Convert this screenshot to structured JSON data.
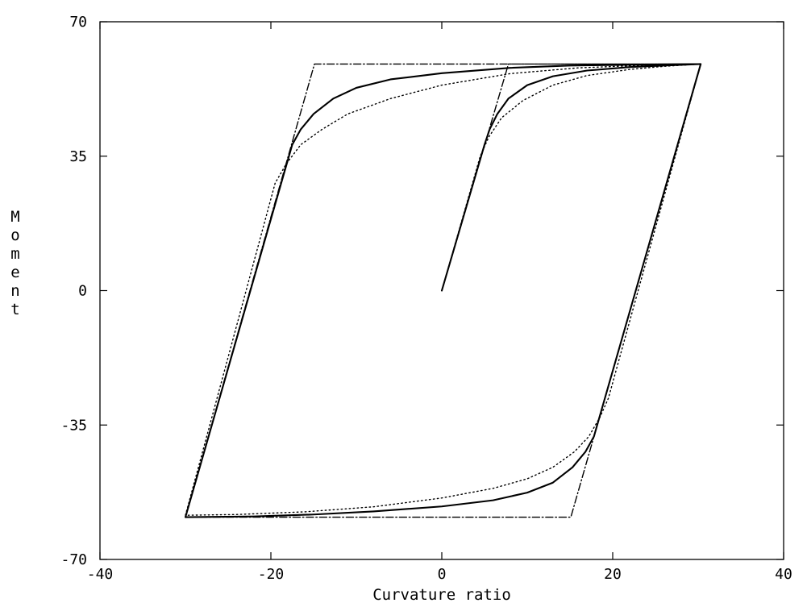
{
  "chart_data": {
    "type": "line",
    "title": "",
    "xlabel": "Curvature ratio",
    "ylabel": "Moment",
    "xlim": [
      -40,
      40
    ],
    "ylim": [
      -70,
      70
    ],
    "x_ticks": [
      -40,
      -20,
      0,
      20,
      40
    ],
    "y_ticks": [
      -70,
      -35,
      0,
      35,
      70
    ],
    "x_tick_labels": [
      "-40",
      "-20",
      "0",
      "20",
      "40"
    ],
    "y_tick_labels": [
      "-70",
      "-35",
      "0",
      "35",
      "70"
    ],
    "grid": false,
    "legend": "none",
    "series": [
      {
        "style": "dash-dot",
        "color": "#000000",
        "points": [
          [
            0,
            0
          ],
          [
            7.8,
            59
          ],
          [
            30.3,
            59
          ],
          [
            15.1,
            -59
          ],
          [
            -30,
            -59
          ],
          [
            -14.9,
            59
          ],
          [
            30.3,
            59
          ]
        ]
      },
      {
        "style": "solid",
        "color": "#000000",
        "points": [
          [
            0,
            0
          ],
          [
            5,
            38
          ],
          [
            5.6,
            42
          ],
          [
            6.5,
            46
          ],
          [
            7.8,
            50
          ],
          [
            10,
            53.5
          ],
          [
            13,
            55.8
          ],
          [
            17,
            57.3
          ],
          [
            22,
            58.2
          ],
          [
            26,
            58.6
          ],
          [
            30.3,
            59
          ],
          [
            17.8,
            -38
          ],
          [
            16.8,
            -42
          ],
          [
            15.3,
            -46
          ],
          [
            13,
            -50
          ],
          [
            10,
            -52.6
          ],
          [
            6,
            -54.6
          ],
          [
            0,
            -56.2
          ],
          [
            -8,
            -57.5
          ],
          [
            -15,
            -58.3
          ],
          [
            -22,
            -58.8
          ],
          [
            -30,
            -59
          ],
          [
            -17.5,
            38
          ],
          [
            -16.5,
            42
          ],
          [
            -15,
            46
          ],
          [
            -12.7,
            50
          ],
          [
            -10,
            52.8
          ],
          [
            -6,
            55
          ],
          [
            0,
            56.6
          ],
          [
            8,
            58
          ],
          [
            15,
            58.6
          ],
          [
            22,
            58.8
          ],
          [
            30.3,
            59
          ]
        ]
      },
      {
        "style": "dotted",
        "color": "#000000",
        "points": [
          [
            0,
            0
          ],
          [
            4.5,
            35
          ],
          [
            5.5,
            40
          ],
          [
            7,
            45
          ],
          [
            9.5,
            49.5
          ],
          [
            13,
            53.5
          ],
          [
            17,
            56
          ],
          [
            22,
            57.6
          ],
          [
            26,
            58.4
          ],
          [
            30.3,
            59
          ],
          [
            19.5,
            -28
          ],
          [
            18.5,
            -33
          ],
          [
            17.2,
            -38
          ],
          [
            15.5,
            -42
          ],
          [
            13,
            -46
          ],
          [
            10,
            -49
          ],
          [
            6,
            -51.5
          ],
          [
            0,
            -54
          ],
          [
            -8,
            -56.3
          ],
          [
            -16,
            -57.6
          ],
          [
            -24,
            -58.3
          ],
          [
            -30,
            -58.5
          ],
          [
            -19.5,
            28
          ],
          [
            -18.2,
            33
          ],
          [
            -16.5,
            38
          ],
          [
            -14,
            42
          ],
          [
            -11,
            46
          ],
          [
            -6,
            50
          ],
          [
            0,
            53.5
          ],
          [
            8,
            56.5
          ],
          [
            16,
            58
          ],
          [
            24,
            58.7
          ],
          [
            30.3,
            59
          ]
        ]
      }
    ]
  }
}
